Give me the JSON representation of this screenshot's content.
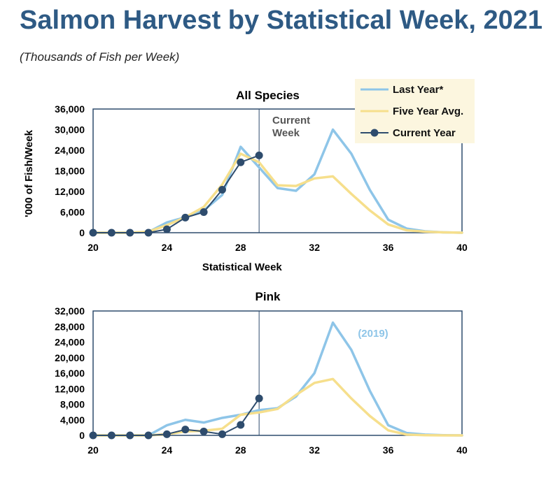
{
  "title": "Salmon Harvest by Statistical Week, 2021",
  "subtitle": "(Thousands of Fish per Week)",
  "colors": {
    "title": "#2e5a84",
    "last_year": "#8ec5e8",
    "five_year_avg": "#f6df8c",
    "current_year": "#2e4c6d",
    "frame": "#2e4c6d",
    "legend_bg": "#fcf6df"
  },
  "legend": {
    "placement": "top-right",
    "items": [
      {
        "label": "Last Year*",
        "series": "last_year"
      },
      {
        "label": "Five Year Avg.",
        "series": "five_year_avg"
      },
      {
        "label": "Current Year",
        "series": "current_year"
      }
    ]
  },
  "chart_data": [
    {
      "type": "line",
      "title": "All Species",
      "xlabel": "Statistical Week",
      "ylabel": "'000 of Fish/Week",
      "xlim": [
        20,
        40
      ],
      "ylim": [
        0,
        36000
      ],
      "x_ticks": [
        20,
        24,
        28,
        32,
        36,
        40
      ],
      "y_ticks": [
        0,
        6000,
        12000,
        18000,
        24000,
        30000,
        36000
      ],
      "y_tick_labels": [
        "0",
        "6,000",
        "12,000",
        "18,000",
        "24,000",
        "30,000",
        "36,000"
      ],
      "grid": false,
      "current_week": 29,
      "annotation": "Current Week",
      "series": [
        {
          "name": "Last Year*",
          "key": "last_year",
          "x": [
            20,
            21,
            22,
            23,
            24,
            25,
            26,
            27,
            28,
            29,
            30,
            31,
            32,
            33,
            34,
            35,
            36,
            37,
            38,
            39,
            40
          ],
          "y": [
            0,
            0,
            0,
            200,
            3000,
            4500,
            6500,
            11000,
            25000,
            19000,
            13000,
            12200,
            17000,
            30000,
            23000,
            12500,
            3800,
            1200,
            400,
            100,
            0
          ]
        },
        {
          "name": "Five Year Avg.",
          "key": "five_year_avg",
          "x": [
            20,
            21,
            22,
            23,
            24,
            25,
            26,
            27,
            28,
            29,
            30,
            31,
            32,
            33,
            34,
            35,
            36,
            37,
            38,
            39,
            40
          ],
          "y": [
            0,
            0,
            0,
            300,
            2200,
            4500,
            7500,
            14000,
            23000,
            20500,
            13800,
            13600,
            15800,
            16400,
            11300,
            6500,
            2400,
            700,
            300,
            100,
            0
          ]
        },
        {
          "name": "Current Year",
          "key": "current_year",
          "x": [
            20,
            21,
            22,
            23,
            24,
            25,
            26,
            27,
            28,
            29
          ],
          "y": [
            0,
            0,
            0,
            0,
            1000,
            4400,
            6000,
            12500,
            20500,
            22500
          ]
        }
      ]
    },
    {
      "type": "line",
      "title": "Pink",
      "xlabel": "",
      "ylabel": "",
      "xlim": [
        20,
        40
      ],
      "ylim": [
        0,
        32000
      ],
      "x_ticks": [
        20,
        24,
        28,
        32,
        36,
        40
      ],
      "y_ticks": [
        0,
        4000,
        8000,
        12000,
        16000,
        20000,
        24000,
        28000,
        32000
      ],
      "y_tick_labels": [
        "0",
        "4,000",
        "8,000",
        "12,000",
        "16,000",
        "20,000",
        "24,000",
        "28,000",
        "32,000"
      ],
      "grid": false,
      "current_week": 29,
      "annotation": "(2019)",
      "series": [
        {
          "name": "Last Year*",
          "key": "last_year",
          "x": [
            20,
            21,
            22,
            23,
            24,
            25,
            26,
            27,
            28,
            29,
            30,
            31,
            32,
            33,
            34,
            35,
            36,
            37,
            38,
            39,
            40
          ],
          "y": [
            0,
            0,
            0,
            0,
            2600,
            4000,
            3300,
            4500,
            5300,
            6500,
            7000,
            10000,
            16000,
            29000,
            22000,
            11500,
            2600,
            600,
            200,
            50,
            0
          ]
        },
        {
          "name": "Five Year Avg.",
          "key": "five_year_avg",
          "x": [
            20,
            21,
            22,
            23,
            24,
            25,
            26,
            27,
            28,
            29,
            30,
            31,
            32,
            33,
            34,
            35,
            36,
            37,
            38,
            39,
            40
          ],
          "y": [
            0,
            0,
            0,
            0,
            300,
            1000,
            1200,
            1700,
            5300,
            5900,
            6800,
            10400,
            13500,
            14500,
            9500,
            5000,
            1300,
            200,
            50,
            0,
            0
          ]
        },
        {
          "name": "Current Year",
          "key": "current_year",
          "x": [
            20,
            21,
            22,
            23,
            24,
            25,
            26,
            27,
            28,
            29
          ],
          "y": [
            0,
            0,
            0,
            0,
            300,
            1500,
            1000,
            300,
            2700,
            9500
          ]
        }
      ]
    }
  ]
}
